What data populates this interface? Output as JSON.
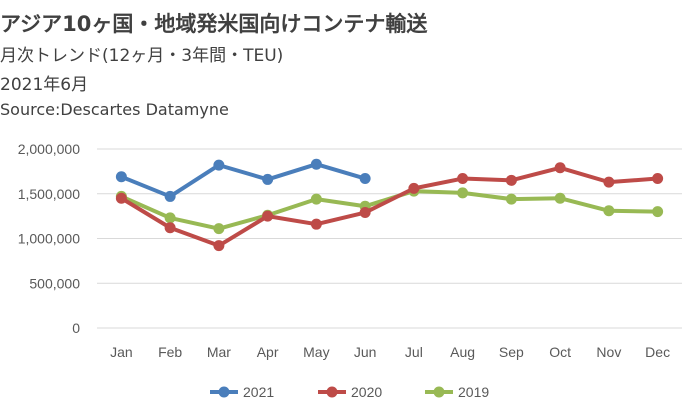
{
  "title": "アジア10ヶ国・地域発米国向けコンテナ輸送",
  "subtitle": "月次トレンド(12ヶ月・3年間・TEU)",
  "period": "2021年6月",
  "source": "Source:Descartes Datamyne",
  "chart_data": {
    "type": "line",
    "categories": [
      "Jan",
      "Feb",
      "Mar",
      "Apr",
      "May",
      "Jun",
      "Jul",
      "Aug",
      "Sep",
      "Oct",
      "Nov",
      "Dec"
    ],
    "ylim": [
      0,
      2000000
    ],
    "yticks": [
      0,
      500000,
      1000000,
      1500000,
      2000000
    ],
    "ytick_labels": [
      "0",
      "500,000",
      "1,000,000",
      "1,500,000",
      "2,000,000"
    ],
    "grid": true,
    "legend_position": "bottom",
    "series": [
      {
        "name": "2021",
        "color": "#4a7ebb",
        "values": [
          1690000,
          1470000,
          1820000,
          1660000,
          1830000,
          1670000,
          null,
          null,
          null,
          null,
          null,
          null
        ]
      },
      {
        "name": "2020",
        "color": "#be4b48",
        "values": [
          1450000,
          1120000,
          920000,
          1250000,
          1160000,
          1290000,
          1560000,
          1670000,
          1650000,
          1790000,
          1630000,
          1670000
        ]
      },
      {
        "name": "2019",
        "color": "#98b954",
        "values": [
          1470000,
          1230000,
          1110000,
          1260000,
          1440000,
          1360000,
          1530000,
          1510000,
          1440000,
          1450000,
          1310000,
          1300000
        ]
      }
    ]
  }
}
